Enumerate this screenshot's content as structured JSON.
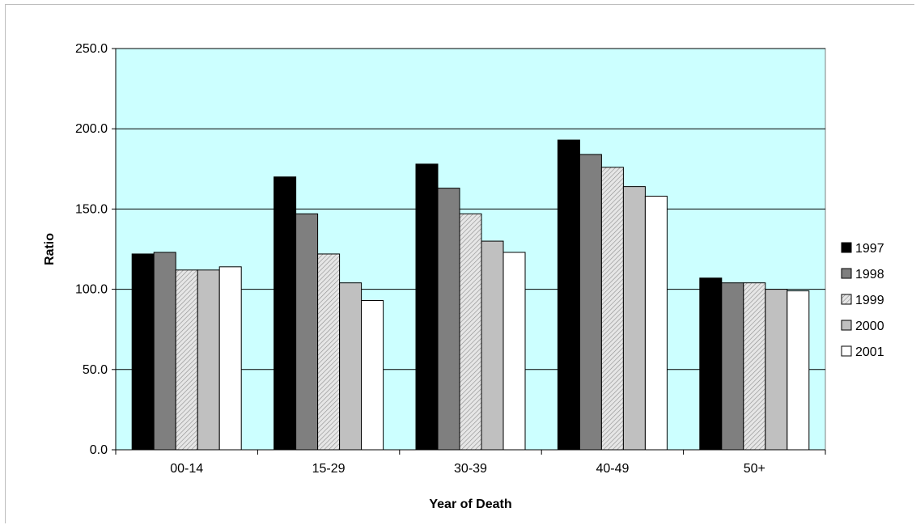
{
  "chart_data": {
    "type": "bar",
    "title": "",
    "xlabel": "Year of Death",
    "ylabel": "Ratio",
    "ylim": [
      0,
      250
    ],
    "yticks": [
      0,
      50,
      100,
      150,
      200,
      250
    ],
    "ytick_labels": [
      "0.0",
      "50.0",
      "100.0",
      "150.0",
      "200.0",
      "250.0"
    ],
    "categories": [
      "00-14",
      "15-29",
      "30-39",
      "40-49",
      "50+"
    ],
    "series": [
      {
        "name": "1997",
        "values": [
          122,
          170,
          178,
          193,
          107
        ],
        "color": "#000000",
        "pattern": "solid"
      },
      {
        "name": "1998",
        "values": [
          123,
          147,
          163,
          184,
          104
        ],
        "color": "#7f7f7f",
        "pattern": "solid"
      },
      {
        "name": "1999",
        "values": [
          112,
          122,
          147,
          176,
          104
        ],
        "color": "#d9d9d9",
        "pattern": "diagonal-hatch"
      },
      {
        "name": "2000",
        "values": [
          112,
          104,
          130,
          164,
          100
        ],
        "color": "#c0c0c0",
        "pattern": "solid"
      },
      {
        "name": "2001",
        "values": [
          114,
          93,
          123,
          158,
          99
        ],
        "color": "#ffffff",
        "pattern": "solid"
      }
    ],
    "grid": true,
    "legend_position": "right",
    "plot_background": "#ccffff"
  }
}
